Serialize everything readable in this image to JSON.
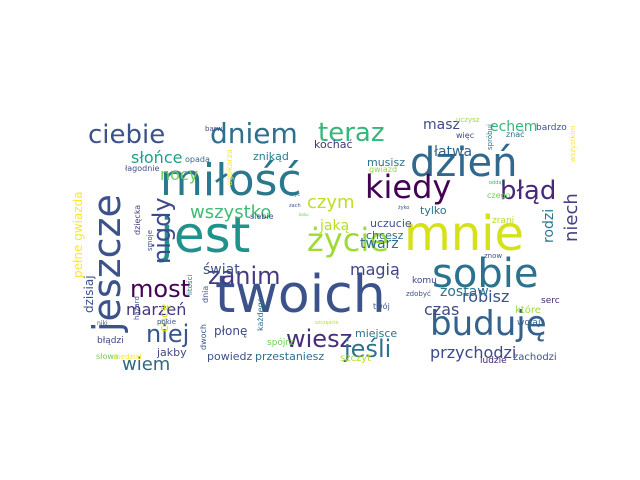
{
  "words": [
    {
      "text": "twoich",
      "color": "#3b528b"
    },
    {
      "text": "jest",
      "color": "#21918c"
    },
    {
      "text": "mnie",
      "color": "#d5e21a"
    },
    {
      "text": "miłość",
      "color": "#2a788e"
    },
    {
      "text": "dzień",
      "color": "#31688e"
    },
    {
      "text": "sobie",
      "color": "#2c728e"
    },
    {
      "text": "jeszcze",
      "color": "#3b528b"
    },
    {
      "text": "buduję",
      "color": "#33628d"
    },
    {
      "text": "kiedy",
      "color": "#440154"
    },
    {
      "text": "życie",
      "color": "#a0da39"
    },
    {
      "text": "dniem",
      "color": "#2d708e"
    },
    {
      "text": "teraz",
      "color": "#35b779"
    },
    {
      "text": "ciebie",
      "color": "#3b528b"
    },
    {
      "text": "błąd",
      "color": "#482878"
    },
    {
      "text": "nigdy",
      "color": "#3e4a89"
    },
    {
      "text": "most",
      "color": "#440154"
    },
    {
      "text": "wiesz",
      "color": "#472d7b"
    },
    {
      "text": "zanim",
      "color": "#443a83"
    },
    {
      "text": "niej",
      "color": "#39568c"
    },
    {
      "text": "jeśli",
      "color": "#2c728e"
    },
    {
      "text": "wszystko",
      "color": "#3fbc73"
    },
    {
      "text": "czym",
      "color": "#bddf26"
    },
    {
      "text": "niech",
      "color": "#433e85"
    },
    {
      "text": "wiem",
      "color": "#30697e"
    },
    {
      "text": "przychodzi",
      "color": "#3e4989"
    },
    {
      "text": "magią",
      "color": "#414487"
    },
    {
      "text": "słońce",
      "color": "#1f9e89"
    },
    {
      "text": "robisz",
      "color": "#3b528b"
    },
    {
      "text": "nocy",
      "color": "#70cf57"
    },
    {
      "text": "marzeń",
      "color": "#463480"
    },
    {
      "text": "czas",
      "color": "#3e4a89"
    },
    {
      "text": "twarz",
      "color": "#2d708e"
    },
    {
      "text": "świat",
      "color": "#3b528b"
    },
    {
      "text": "masz",
      "color": "#3e4a89"
    },
    {
      "text": "echem",
      "color": "#35b779"
    },
    {
      "text": "łatwa",
      "color": "#33638d"
    },
    {
      "text": "zostaw",
      "color": "#2c728e"
    },
    {
      "text": "rodzi",
      "color": "#29798e"
    },
    {
      "text": "jaką",
      "color": "#b5de2b"
    },
    {
      "text": "dzisiaj",
      "color": "#3b528b"
    },
    {
      "text": "pełne gwiazda",
      "color": "#fde725"
    },
    {
      "text": "płonę",
      "color": "#3e4989"
    },
    {
      "text": "chcę",
      "color": "#d8e219"
    },
    {
      "text": "powiedz",
      "color": "#3b528b"
    },
    {
      "text": "przestaniesz",
      "color": "#2d708e"
    },
    {
      "text": "jakby",
      "color": "#3e4989"
    },
    {
      "text": "kochać",
      "color": "#46327e"
    },
    {
      "text": "znikąd",
      "color": "#277f8e"
    },
    {
      "text": "musisz",
      "color": "#2c728e"
    },
    {
      "text": "uczucie",
      "color": "#3b528b"
    },
    {
      "text": "chcesz",
      "color": "#2d708e"
    },
    {
      "text": "tylko",
      "color": "#2d708e"
    },
    {
      "text": "siebie",
      "color": "#3b528b"
    },
    {
      "text": "miejsce",
      "color": "#2c728e"
    },
    {
      "text": "szczyt",
      "color": "#b5de2b"
    },
    {
      "text": "zachodzi",
      "color": "#3b528b"
    },
    {
      "text": "ludzie",
      "color": "#482071"
    },
    {
      "text": "błądzi",
      "color": "#3e4989"
    },
    {
      "text": "spójrz",
      "color": "#6ece58"
    },
    {
      "text": "słowa",
      "color": "#6ece58"
    },
    {
      "text": "wiedział",
      "color": "#fde725"
    },
    {
      "text": "bardzo",
      "color": "#3b528b"
    },
    {
      "text": "znać",
      "color": "#2c728e"
    },
    {
      "text": "uczysz",
      "color": "#a0da39"
    },
    {
      "text": "więc",
      "color": "#3e4989"
    },
    {
      "text": "opada",
      "color": "#2d708e"
    },
    {
      "text": "łagodnie",
      "color": "#3b528b"
    },
    {
      "text": "barw",
      "color": "#3e4989"
    },
    {
      "text": "dzięcka",
      "color": "#433e85"
    },
    {
      "text": "smoje",
      "color": "#3b528b"
    },
    {
      "text": "ugokarza",
      "color": "#fde725"
    },
    {
      "text": "gwiazd",
      "color": "#8fd744"
    },
    {
      "text": "spróbuj",
      "color": "#2c728e"
    },
    {
      "text": "czego",
      "color": "#6ece58"
    },
    {
      "text": "wszystkim",
      "color": "#fde725"
    },
    {
      "text": "zrani",
      "color": "#b5de2b"
    },
    {
      "text": "serc",
      "color": "#482878"
    },
    {
      "text": "które",
      "color": "#a0da39"
    },
    {
      "text": "wołaj",
      "color": "#33638d"
    },
    {
      "text": "komu",
      "color": "#3e4989"
    },
    {
      "text": "zdobyć",
      "color": "#3b528b"
    },
    {
      "text": "twój",
      "color": "#3b528b"
    },
    {
      "text": "każdego",
      "color": "#2c728e"
    },
    {
      "text": "dwoch",
      "color": "#3b528b"
    },
    {
      "text": "pokie",
      "color": "#3b528b"
    },
    {
      "text": "litości",
      "color": "#2c728e"
    },
    {
      "text": "hazard",
      "color": "#3b528b"
    },
    {
      "text": "znow",
      "color": "#3b528b"
    },
    {
      "text": "oddaj",
      "color": "#35b779"
    },
    {
      "text": "szczęście",
      "color": "#b5de2b"
    },
    {
      "text": "zach",
      "color": "#3b528b"
    },
    {
      "text": "żyko",
      "color": "#3b528b"
    },
    {
      "text": "czyć",
      "color": "#2c728e"
    },
    {
      "text": "boku",
      "color": "#6ece58"
    },
    {
      "text": "niki",
      "color": "#3b528b"
    },
    {
      "text": "dnia",
      "color": "#3b528b"
    }
  ]
}
